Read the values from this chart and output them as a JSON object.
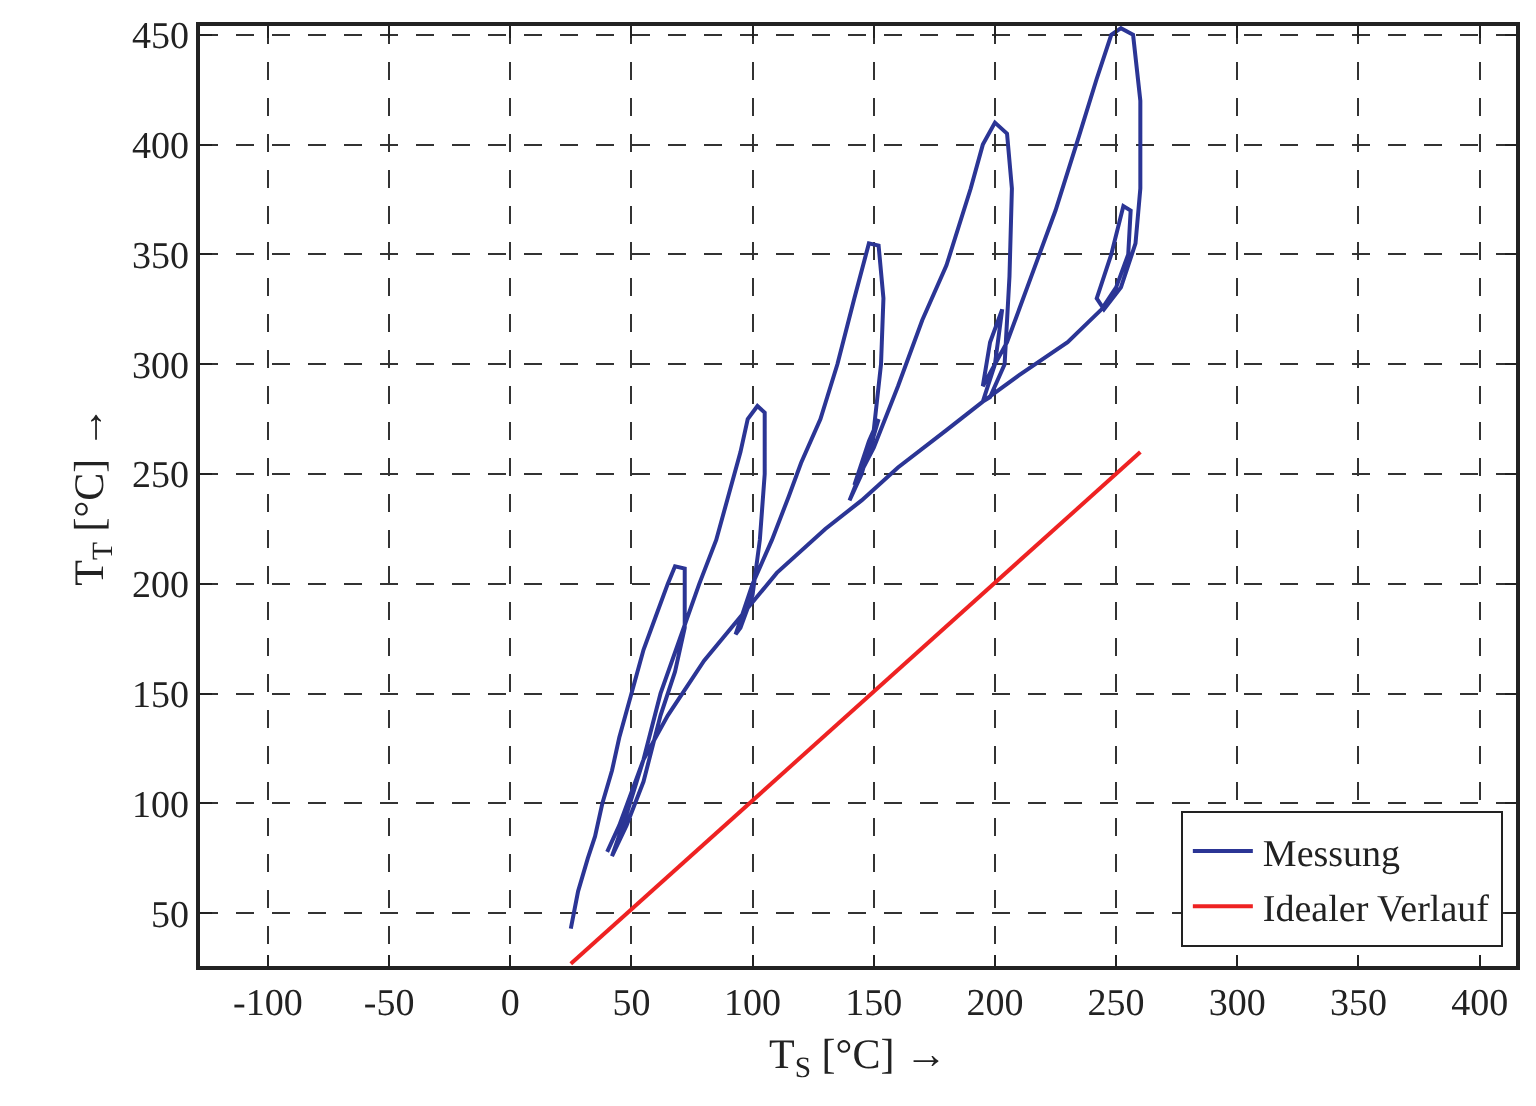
{
  "chart_data": {
    "type": "line",
    "xlabel": "T$_{S}$ [°C] →",
    "ylabel": "T$_{T}$ [°C] →",
    "xlim": [
      -128,
      415
    ],
    "ylim": [
      26,
      454
    ],
    "xticks": [
      -100,
      -50,
      0,
      50,
      100,
      150,
      200,
      250,
      300,
      350,
      400
    ],
    "yticks": [
      50,
      100,
      150,
      200,
      250,
      300,
      350,
      400,
      450
    ],
    "grid": true,
    "legend": "bottom right",
    "line_style": "solid",
    "marker": "none",
    "series": [
      {
        "name": "Messung",
        "color": "#2b3595",
        "x": [
          25,
          28,
          32,
          35,
          38,
          42,
          45,
          50,
          55,
          60,
          65,
          68,
          72,
          72,
          68,
          62,
          55,
          48,
          42,
          48,
          55,
          62,
          70,
          78,
          85,
          90,
          95,
          98,
          102,
          105,
          105,
          103,
          100,
          95,
          93,
          100,
          108,
          115,
          120,
          128,
          135,
          142,
          148,
          152,
          154,
          153,
          150,
          145,
          140,
          148,
          152,
          148,
          142,
          150,
          160,
          170,
          180,
          190,
          195,
          200,
          205,
          207,
          206,
          204,
          198,
          195,
          200,
          203,
          198,
          195,
          205,
          215,
          225,
          235,
          242,
          248,
          252,
          257,
          260,
          260,
          258,
          252,
          245,
          242,
          248,
          253,
          256,
          255,
          250,
          244,
          230,
          210,
          195,
          180,
          160,
          145,
          130,
          110,
          95,
          80,
          65,
          55,
          45,
          40
        ],
        "values": [
          43,
          60,
          75,
          85,
          100,
          115,
          130,
          150,
          170,
          185,
          200,
          208,
          207,
          180,
          160,
          140,
          110,
          90,
          76,
          95,
          120,
          150,
          175,
          200,
          220,
          240,
          260,
          275,
          281,
          278,
          250,
          220,
          195,
          180,
          177,
          200,
          220,
          240,
          255,
          275,
          300,
          330,
          355,
          354,
          330,
          300,
          270,
          250,
          238,
          260,
          275,
          265,
          245,
          262,
          290,
          320,
          345,
          380,
          400,
          410,
          405,
          380,
          340,
          300,
          285,
          283,
          300,
          325,
          310,
          290,
          310,
          340,
          370,
          405,
          430,
          450,
          453,
          450,
          420,
          380,
          355,
          335,
          325,
          330,
          350,
          372,
          370,
          350,
          335,
          325,
          310,
          295,
          283,
          270,
          253,
          238,
          225,
          205,
          185,
          165,
          140,
          120,
          90,
          78
        ]
      },
      {
        "name": "Idealer Verlauf",
        "color": "#ee2222",
        "x": [
          25,
          260
        ],
        "values": [
          27,
          260
        ]
      }
    ]
  }
}
